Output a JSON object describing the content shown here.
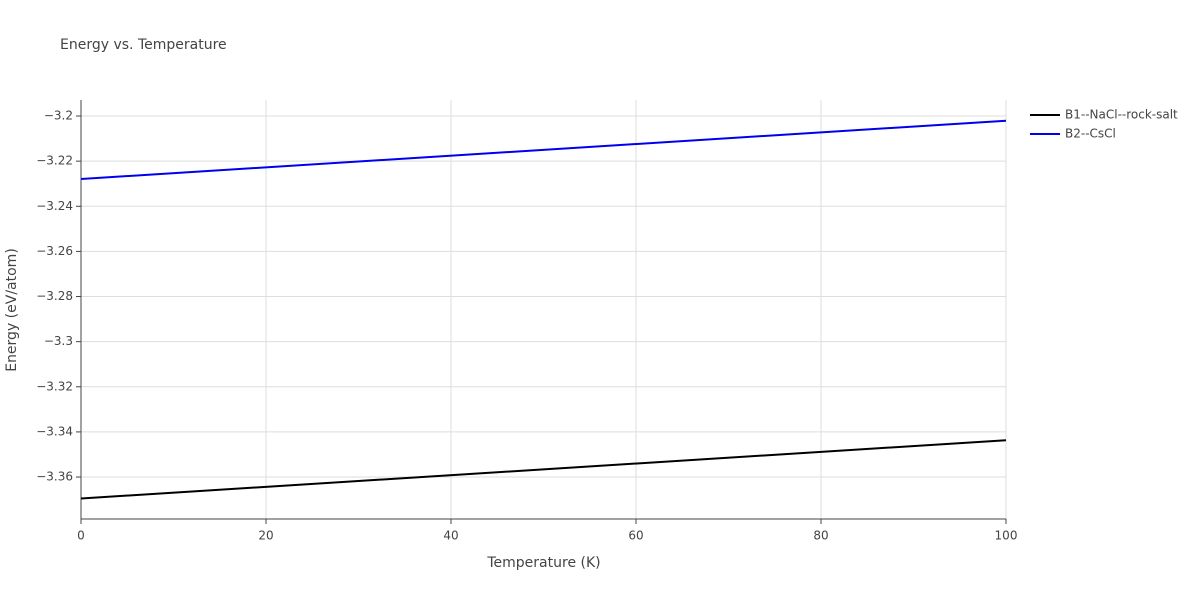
{
  "chart_data": {
    "type": "line",
    "title": "Energy vs. Temperature",
    "x_label": "Temperature (K)",
    "y_label": "Energy (eV/atom)",
    "x": [
      0,
      100
    ],
    "series": [
      {
        "name": "B1--NaCl--rock-salt",
        "color": "#000000",
        "values": [
          -3.3695,
          -3.3437
        ]
      },
      {
        "name": "B2--CsCl",
        "color": "#0000ee",
        "values": [
          -3.2279,
          -3.2021
        ]
      }
    ],
    "xlim": [
      0,
      100
    ],
    "xticks": [
      0,
      20,
      40,
      60,
      80,
      100
    ],
    "ylim": [
      -3.3786,
      -3.1929
    ],
    "yticks": [
      {
        "value": -3.2,
        "label": "−3.2"
      },
      {
        "value": -3.22,
        "label": "−3.22"
      },
      {
        "value": -3.24,
        "label": "−3.24"
      },
      {
        "value": -3.26,
        "label": "−3.26"
      },
      {
        "value": -3.28,
        "label": "−3.28"
      },
      {
        "value": -3.3,
        "label": "−3.3"
      },
      {
        "value": -3.32,
        "label": "−3.32"
      },
      {
        "value": -3.34,
        "label": "−3.34"
      },
      {
        "value": -3.36,
        "label": "−3.36"
      }
    ],
    "grid": true,
    "legend": "top-right"
  }
}
